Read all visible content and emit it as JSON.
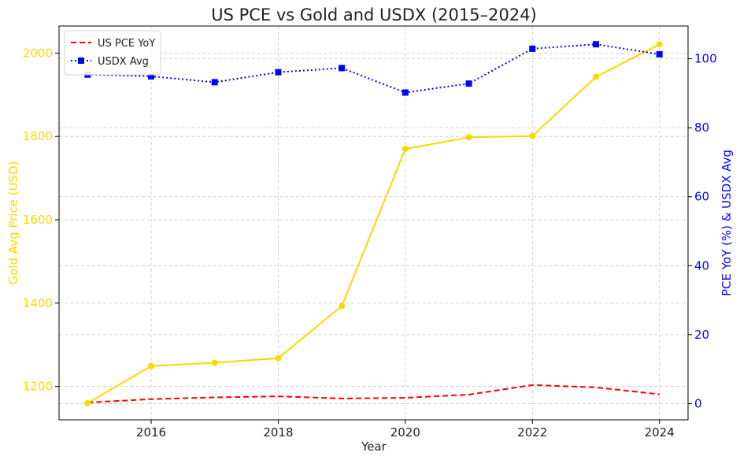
{
  "chart_data": {
    "type": "line",
    "title": "US PCE vs Gold and USDX (2015–2024)",
    "xlabel": "Year",
    "ylabel_left": "Gold Avg Price (USD)",
    "ylabel_right": "PCE YoY (%) & USDX Avg",
    "x": [
      2015,
      2016,
      2017,
      2018,
      2019,
      2020,
      2021,
      2022,
      2023,
      2024
    ],
    "x_ticks": [
      "2016",
      "2018",
      "2020",
      "2022",
      "2024"
    ],
    "y_left_ticks": [
      "1200",
      "1400",
      "1600",
      "1800",
      "2000"
    ],
    "y_right_ticks": [
      "0",
      "20",
      "40",
      "60",
      "80",
      "100"
    ],
    "xlim": [
      2014.55,
      2024.45
    ],
    "ylim_left": [
      1120,
      2065
    ],
    "ylim_right": [
      -4.7,
      109.5
    ],
    "grid": true,
    "legend_position": "top-left",
    "series": [
      {
        "axis": "left",
        "color": "#FFD700",
        "style": "solid",
        "marker": "circle",
        "values": [
          1160,
          1249,
          1257,
          1268,
          1393,
          1770,
          1798,
          1801,
          1943,
          2021
        ]
      },
      {
        "name": "US PCE YoY",
        "axis": "right",
        "color": "#ff0000",
        "style": "dashed",
        "marker": "none",
        "values": [
          0.3,
          1.3,
          1.8,
          2.1,
          1.5,
          1.7,
          2.6,
          5.4,
          4.7,
          2.7
        ]
      },
      {
        "name": "USDX Avg",
        "axis": "right",
        "color": "#0000ff",
        "style": "dotted",
        "marker": "square",
        "values": [
          95.4,
          94.9,
          93.2,
          96.1,
          97.3,
          90.2,
          92.8,
          102.9,
          104.2,
          101.3
        ]
      }
    ]
  }
}
